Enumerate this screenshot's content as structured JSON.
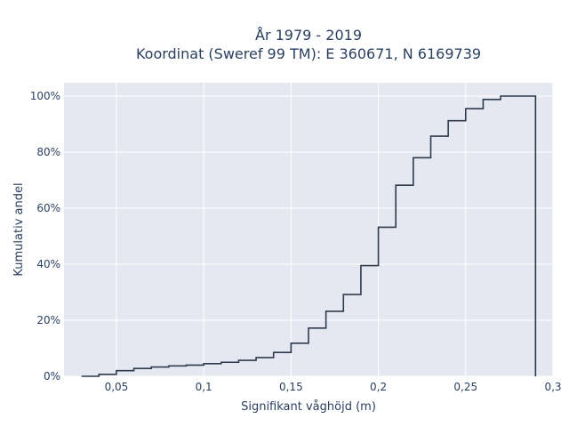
{
  "chart_data": {
    "type": "line",
    "line_shape": "step",
    "title": "År 1979 - 2019",
    "subtitle": "Koordinat (Sweref 99 TM): E 360671, N 6169739",
    "xlabel": "Signifikant våghöjd (m)",
    "ylabel": "Kumulativ andel",
    "xlim": [
      0.02,
      0.3
    ],
    "ylim": [
      0,
      1.0
    ],
    "x_ticks": [
      {
        "value": 0.05,
        "label": "0,05"
      },
      {
        "value": 0.1,
        "label": "0,1"
      },
      {
        "value": 0.15,
        "label": "0,15"
      },
      {
        "value": 0.2,
        "label": "0,2"
      },
      {
        "value": 0.25,
        "label": "0,25"
      },
      {
        "value": 0.3,
        "label": "0,3"
      }
    ],
    "y_ticks": [
      {
        "value": 0,
        "label": "0%"
      },
      {
        "value": 0.2,
        "label": "20%"
      },
      {
        "value": 0.4,
        "label": "40%"
      },
      {
        "value": 0.6,
        "label": "60%"
      },
      {
        "value": 0.8,
        "label": "80%"
      },
      {
        "value": 1.0,
        "label": "100%"
      }
    ],
    "grid": true,
    "series": [
      {
        "color": "#2f3b4c",
        "x": [
          0.03,
          0.04,
          0.05,
          0.06,
          0.07,
          0.08,
          0.09,
          0.1,
          0.11,
          0.12,
          0.13,
          0.14,
          0.15,
          0.16,
          0.17,
          0.18,
          0.19,
          0.2,
          0.21,
          0.22,
          0.23,
          0.24,
          0.25,
          0.26,
          0.27,
          0.28,
          0.29
        ],
        "y": [
          0.0,
          0.007,
          0.02,
          0.028,
          0.033,
          0.037,
          0.04,
          0.045,
          0.05,
          0.057,
          0.067,
          0.085,
          0.118,
          0.172,
          0.232,
          0.292,
          0.395,
          0.532,
          0.682,
          0.78,
          0.857,
          0.912,
          0.955,
          0.988,
          1.0,
          1.0,
          0.0
        ]
      }
    ]
  }
}
